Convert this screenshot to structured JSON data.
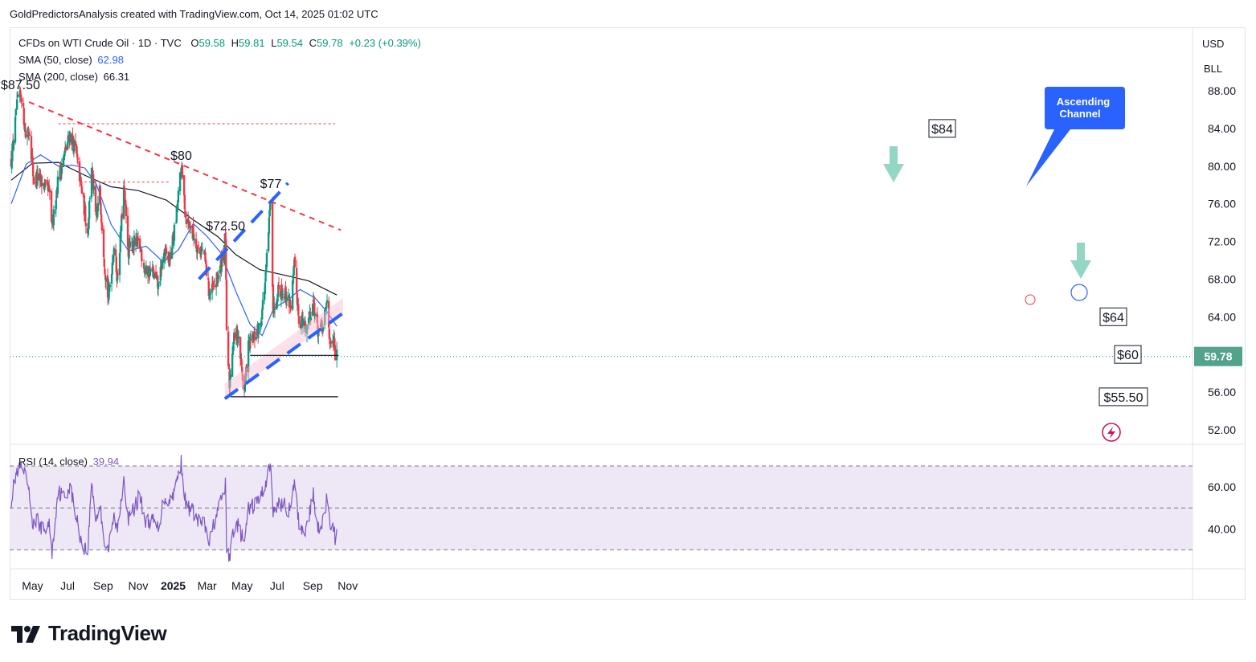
{
  "header": {
    "caption": "GoldPredictorsAnalysis created with TradingView.com, Oct 14, 2025 01:02 UTC"
  },
  "legend": {
    "symbol": "CFDs on WTI Crude Oil · 1D · TVC",
    "ohlc_o_label": "O",
    "ohlc_o": "59.58",
    "ohlc_h_label": "H",
    "ohlc_h": "59.81",
    "ohlc_l_label": "L",
    "ohlc_l": "59.54",
    "ohlc_c_label": "C",
    "ohlc_c": "59.78",
    "change": "+0.23 (+0.39%)",
    "sma50_label": "SMA (50, close)",
    "sma50_value": "62.98",
    "sma200_label": "SMA (200, close)",
    "sma200_value": "66.31",
    "rsi_label": "RSI (14, close)",
    "rsi_value": "39.94"
  },
  "axis": {
    "currency": "USD",
    "unit": "BLL",
    "last_price": "59.78"
  },
  "logo": {
    "text": "TradingView"
  },
  "colors": {
    "up": "#089981",
    "down": "#f23645",
    "sma50": "#2962ff",
    "sma200": "#131722",
    "resistance": "#f23645",
    "channel": "#2962ff",
    "rsi_line": "#7e57c2",
    "rsi_band": "#ede7f6",
    "arrow": "#7fcfb9",
    "callout": "#2962ff"
  },
  "chart_data": {
    "type": "candlestick",
    "title": "CFDs on WTI Crude Oil · 1D · TVC",
    "x_ticks": [
      "May",
      "Jul",
      "Sep",
      "Nov",
      "2025",
      "Mar",
      "May",
      "Jul",
      "Sep",
      "Nov"
    ],
    "y_ticks": [
      "88.00",
      "84.00",
      "80.00",
      "76.00",
      "72.00",
      "68.00",
      "64.00",
      "60.00",
      "56.00",
      "52.00"
    ],
    "ylim": [
      50.5,
      90.8
    ],
    "rsi_ticks": [
      "60.00",
      "40.00"
    ],
    "rsi_levels": [
      70,
      50,
      30
    ],
    "close_path": [
      [
        "2024-03-25",
        80.6
      ],
      [
        "2024-04-05",
        86.9
      ],
      [
        "2024-04-12",
        87.5
      ],
      [
        "2024-04-19",
        83.2
      ],
      [
        "2024-04-26",
        83.8
      ],
      [
        "2024-05-03",
        78.4
      ],
      [
        "2024-05-10",
        78.8
      ],
      [
        "2024-05-20",
        78.0
      ],
      [
        "2024-05-31",
        77.0
      ],
      [
        "2024-06-04",
        73.2
      ],
      [
        "2024-06-14",
        78.5
      ],
      [
        "2024-06-26",
        81.3
      ],
      [
        "2024-07-05",
        83.4
      ],
      [
        "2024-07-15",
        81.7
      ],
      [
        "2024-07-26",
        77.3
      ],
      [
        "2024-08-05",
        72.9
      ],
      [
        "2024-08-12",
        80.1
      ],
      [
        "2024-08-20",
        74.1
      ],
      [
        "2024-08-26",
        77.4
      ],
      [
        "2024-09-04",
        69.2
      ],
      [
        "2024-09-10",
        65.8
      ],
      [
        "2024-09-20",
        71.6
      ],
      [
        "2024-09-26",
        67.9
      ],
      [
        "2024-10-07",
        77.6
      ],
      [
        "2024-10-15",
        71.0
      ],
      [
        "2024-10-25",
        71.9
      ],
      [
        "2024-11-04",
        71.5
      ],
      [
        "2024-11-14",
        68.7
      ],
      [
        "2024-11-25",
        68.9
      ],
      [
        "2024-12-06",
        67.2
      ],
      [
        "2024-12-16",
        70.8
      ],
      [
        "2024-12-26",
        70.1
      ],
      [
        "2025-01-06",
        74.3
      ],
      [
        "2025-01-15",
        80.0
      ],
      [
        "2025-01-23",
        74.6
      ],
      [
        "2025-02-03",
        73.2
      ],
      [
        "2025-02-12",
        71.4
      ],
      [
        "2025-02-24",
        70.7
      ],
      [
        "2025-03-05",
        66.3
      ],
      [
        "2025-03-14",
        67.2
      ],
      [
        "2025-03-24",
        69.1
      ],
      [
        "2025-04-02",
        72.5
      ],
      [
        "2025-04-04",
        61.9
      ],
      [
        "2025-04-09",
        56.8
      ],
      [
        "2025-04-15",
        61.3
      ],
      [
        "2025-04-23",
        62.5
      ],
      [
        "2025-05-05",
        56.0
      ],
      [
        "2025-05-12",
        60.9
      ],
      [
        "2025-05-21",
        61.6
      ],
      [
        "2025-06-02",
        63.2
      ],
      [
        "2025-06-11",
        68.1
      ],
      [
        "2025-06-20",
        77.0
      ],
      [
        "2025-06-24",
        64.8
      ],
      [
        "2025-07-03",
        67.0
      ],
      [
        "2025-07-14",
        66.5
      ],
      [
        "2025-07-25",
        65.3
      ],
      [
        "2025-07-31",
        69.4
      ],
      [
        "2025-08-08",
        63.8
      ],
      [
        "2025-08-20",
        62.7
      ],
      [
        "2025-09-02",
        65.6
      ],
      [
        "2025-09-10",
        62.6
      ],
      [
        "2025-09-19",
        62.7
      ],
      [
        "2025-09-26",
        65.7
      ],
      [
        "2025-10-02",
        60.5
      ],
      [
        "2025-10-09",
        61.4
      ],
      [
        "2025-10-10",
        58.9
      ],
      [
        "2025-10-13",
        59.78
      ]
    ],
    "sma50_path": [
      [
        "2024-03-25",
        76.0
      ],
      [
        "2024-04-20",
        80.2
      ],
      [
        "2024-05-15",
        81.2
      ],
      [
        "2024-06-15",
        80.0
      ],
      [
        "2024-07-10",
        80.1
      ],
      [
        "2024-07-31",
        79.8
      ],
      [
        "2024-08-20",
        78.1
      ],
      [
        "2024-09-15",
        73.8
      ],
      [
        "2024-10-15",
        71.0
      ],
      [
        "2024-11-15",
        71.5
      ],
      [
        "2024-12-15",
        69.8
      ],
      [
        "2025-01-10",
        71.1
      ],
      [
        "2025-02-05",
        73.9
      ],
      [
        "2025-02-28",
        72.6
      ],
      [
        "2025-03-25",
        70.8
      ],
      [
        "2025-04-20",
        66.7
      ],
      [
        "2025-05-15",
        63.2
      ],
      [
        "2025-06-05",
        62.0
      ],
      [
        "2025-06-25",
        64.9
      ],
      [
        "2025-07-20",
        65.8
      ],
      [
        "2025-08-10",
        66.9
      ],
      [
        "2025-09-05",
        66.0
      ],
      [
        "2025-09-25",
        64.6
      ],
      [
        "2025-10-13",
        62.98
      ]
    ],
    "sma200_path": [
      [
        "2024-03-25",
        78.5
      ],
      [
        "2024-05-01",
        80.3
      ],
      [
        "2024-06-15",
        80.4
      ],
      [
        "2024-08-01",
        79.0
      ],
      [
        "2024-09-15",
        77.8
      ],
      [
        "2024-11-01",
        77.4
      ],
      [
        "2024-12-20",
        76.4
      ],
      [
        "2025-02-05",
        74.3
      ],
      [
        "2025-03-20",
        72.5
      ],
      [
        "2025-04-20",
        70.6
      ],
      [
        "2025-06-01",
        69.0
      ],
      [
        "2025-07-15",
        68.4
      ],
      [
        "2025-08-25",
        67.8
      ],
      [
        "2025-10-13",
        66.31
      ]
    ],
    "rsi_path": [
      [
        "2024-03-25",
        54
      ],
      [
        "2024-04-02",
        66
      ],
      [
        "2024-04-12",
        69
      ],
      [
        "2024-04-22",
        62
      ],
      [
        "2024-05-02",
        42
      ],
      [
        "2024-05-10",
        44
      ],
      [
        "2024-05-20",
        39
      ],
      [
        "2024-05-31",
        42
      ],
      [
        "2024-06-04",
        28
      ],
      [
        "2024-06-14",
        58
      ],
      [
        "2024-06-26",
        55
      ],
      [
        "2024-07-05",
        61
      ],
      [
        "2024-07-15",
        47
      ],
      [
        "2024-07-26",
        33
      ],
      [
        "2024-08-05",
        29
      ],
      [
        "2024-08-12",
        62
      ],
      [
        "2024-08-20",
        44
      ],
      [
        "2024-08-26",
        52
      ],
      [
        "2024-09-04",
        33
      ],
      [
        "2024-09-10",
        30
      ],
      [
        "2024-09-20",
        46
      ],
      [
        "2024-09-26",
        39
      ],
      [
        "2024-10-07",
        65
      ],
      [
        "2024-10-15",
        44
      ],
      [
        "2024-10-25",
        50
      ],
      [
        "2024-11-04",
        56
      ],
      [
        "2024-11-14",
        43
      ],
      [
        "2024-11-25",
        44
      ],
      [
        "2024-12-06",
        40
      ],
      [
        "2024-12-16",
        55
      ],
      [
        "2024-12-26",
        53
      ],
      [
        "2025-01-06",
        61
      ],
      [
        "2025-01-15",
        72
      ],
      [
        "2025-01-23",
        51
      ],
      [
        "2025-02-03",
        49
      ],
      [
        "2025-02-12",
        44
      ],
      [
        "2025-02-24",
        42
      ],
      [
        "2025-03-05",
        33
      ],
      [
        "2025-03-14",
        44
      ],
      [
        "2025-03-24",
        52
      ],
      [
        "2025-04-02",
        61
      ],
      [
        "2025-04-04",
        32
      ],
      [
        "2025-04-09",
        25
      ],
      [
        "2025-04-15",
        39
      ],
      [
        "2025-04-23",
        42
      ],
      [
        "2025-05-05",
        33
      ],
      [
        "2025-05-12",
        49
      ],
      [
        "2025-05-21",
        51
      ],
      [
        "2025-06-02",
        55
      ],
      [
        "2025-06-11",
        62
      ],
      [
        "2025-06-20",
        72
      ],
      [
        "2025-06-24",
        46
      ],
      [
        "2025-07-03",
        53
      ],
      [
        "2025-07-14",
        51
      ],
      [
        "2025-07-25",
        48
      ],
      [
        "2025-07-31",
        63
      ],
      [
        "2025-08-08",
        42
      ],
      [
        "2025-08-20",
        39
      ],
      [
        "2025-09-02",
        56
      ],
      [
        "2025-09-10",
        41
      ],
      [
        "2025-09-19",
        44
      ],
      [
        "2025-09-26",
        55
      ],
      [
        "2025-10-02",
        37
      ],
      [
        "2025-10-09",
        44
      ],
      [
        "2025-10-10",
        32
      ],
      [
        "2025-10-13",
        39.94
      ]
    ],
    "annotations": {
      "price_labels": [
        {
          "text": "$87.50",
          "date": "2024-04-10",
          "price": 87.5
        },
        {
          "text": "$80",
          "date": "2025-01-15",
          "price": 80.0
        },
        {
          "text": "$77",
          "date": "2025-06-20",
          "price": 77.0
        },
        {
          "text": "$72.50",
          "date": "2025-04-02",
          "price": 72.5
        }
      ],
      "boxed_labels": [
        {
          "text": "$84",
          "price": 84.0
        },
        {
          "text": "$64",
          "price": 64.0
        },
        {
          "text": "$60",
          "price": 60.0
        },
        {
          "text": "$55.50",
          "price": 55.5
        }
      ],
      "callout": {
        "text_line1": "Ascending",
        "text_line2": "Channel"
      },
      "resistance_line": [
        [
          "2024-04-25",
          86.8
        ],
        [
          "2025-10-20",
          73.2
        ]
      ],
      "channel_upper": [
        [
          "2025-02-15",
          68.0
        ],
        [
          "2025-07-20",
          78.2
        ]
      ],
      "channel_lower": [
        [
          "2025-04-01",
          55.3
        ],
        [
          "2025-10-24",
          64.4
        ]
      ],
      "horizontal_dotted": [
        {
          "price": 84.5,
          "from": "2024-06-15",
          "to": "2025-10-10"
        },
        {
          "price": 78.3,
          "from": "2024-07-30",
          "to": "2024-12-26"
        }
      ],
      "support_60": {
        "price": 59.9,
        "from": "2025-05-15",
        "to": "2025-10-16"
      },
      "support_55": {
        "price": 55.5,
        "from": "2025-04-11",
        "to": "2025-10-15"
      }
    }
  }
}
